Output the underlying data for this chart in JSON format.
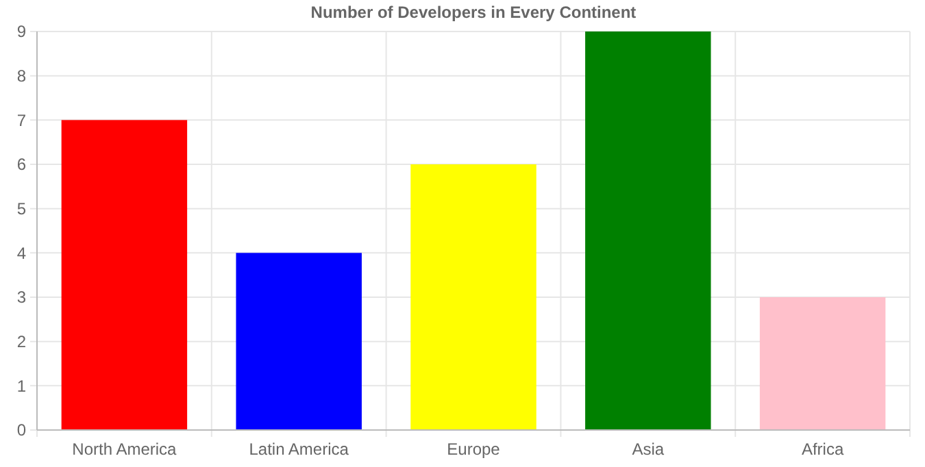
{
  "chart_data": {
    "type": "bar",
    "title": "Number of Developers in Every Continent",
    "categories": [
      "North America",
      "Latin America",
      "Europe",
      "Asia",
      "Africa"
    ],
    "values": [
      7,
      4,
      6,
      9,
      3
    ],
    "colors": [
      "#ff0000",
      "#0000ff",
      "#ffff00",
      "#008000",
      "#ffc0cb"
    ],
    "ylim": [
      0,
      9
    ],
    "yticks": [
      0,
      1,
      2,
      3,
      4,
      5,
      6,
      7,
      8,
      9
    ],
    "grid": true
  }
}
